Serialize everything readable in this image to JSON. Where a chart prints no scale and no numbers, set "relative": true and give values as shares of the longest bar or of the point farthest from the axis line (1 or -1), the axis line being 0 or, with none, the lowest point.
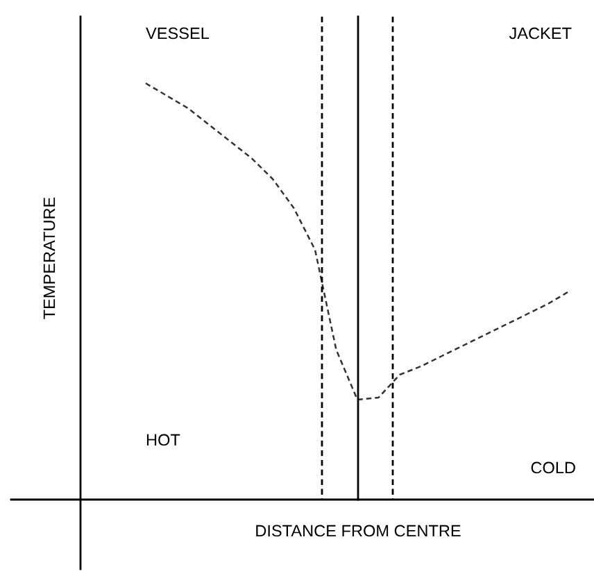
{
  "chart_data": {
    "type": "line",
    "relative": true,
    "xlabel": "DISTANCE FROM CENTRE",
    "ylabel": "TEMPERATURE",
    "annotations": [
      "VESSEL",
      "JACKET",
      "HOT",
      "COLD"
    ],
    "categories": [
      null,
      null,
      null,
      null,
      null,
      null,
      null,
      null,
      null,
      null,
      null,
      null,
      null,
      null,
      null,
      null,
      null,
      null,
      null,
      null,
      null
    ],
    "series": [
      {
        "color": "#333333",
        "line_style": "dashed",
        "values": [
          1.0,
          0.97,
          0.94,
          0.9,
          0.86,
          0.82,
          0.77,
          0.7,
          0.6,
          0.36,
          0.24,
          0.245,
          0.3,
          0.32,
          0.345,
          0.37,
          0.395,
          0.42,
          0.445,
          0.47,
          0.5
        ]
      }
    ],
    "legend": false,
    "marker": "none"
  }
}
